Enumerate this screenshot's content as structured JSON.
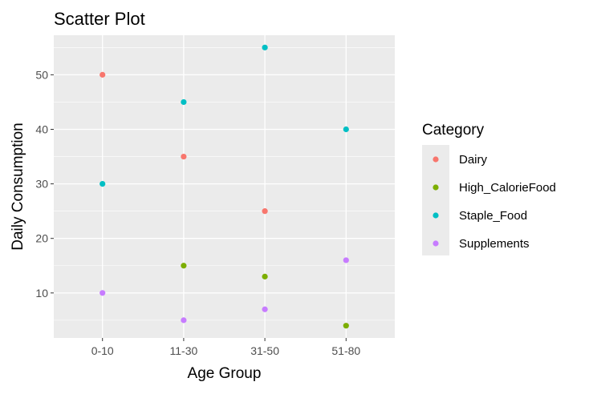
{
  "chart_data": {
    "type": "scatter",
    "title": "Scatter Plot",
    "xlabel": "Age Group",
    "ylabel": "Daily Consumption",
    "categories": [
      "0-10",
      "11-30",
      "31-50",
      "51-80"
    ],
    "ylim": [
      1.75,
      57.25
    ],
    "yticks": [
      10,
      20,
      30,
      40,
      50
    ],
    "grid": true,
    "legend": {
      "title": "Category",
      "placement": "right"
    },
    "series": [
      {
        "name": "Dairy",
        "color": "#F8766D",
        "values": [
          50,
          35,
          25,
          null
        ]
      },
      {
        "name": "High_CalorieFood",
        "color": "#7CAE00",
        "values": [
          null,
          15,
          13,
          4
        ]
      },
      {
        "name": "Staple_Food",
        "color": "#00BFC4",
        "values": [
          30,
          45,
          55,
          40
        ]
      },
      {
        "name": "Supplements",
        "color": "#C77CFF",
        "values": [
          10,
          5,
          7,
          16
        ]
      }
    ]
  }
}
